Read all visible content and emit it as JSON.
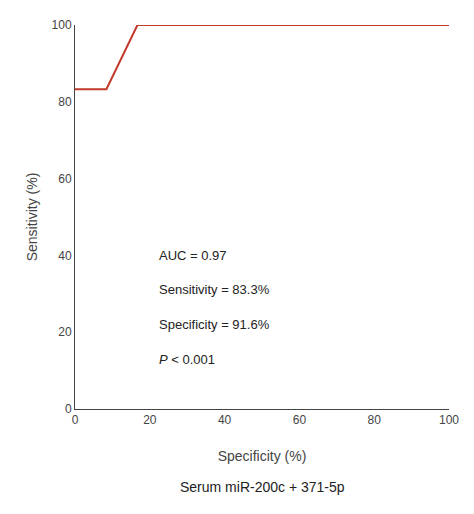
{
  "chart_data": {
    "type": "line",
    "x": [
      0,
      0,
      8.4,
      16.7,
      84,
      100
    ],
    "values": [
      83.3,
      83.3,
      83.3,
      100,
      100,
      100
    ],
    "color": "#c0392b",
    "xlabel": "Specificity (%)",
    "ylabel": "Sensitivity (%)",
    "subtitle": "Serum miR-200c + 371-5p",
    "xlim": [
      0,
      100
    ],
    "ylim": [
      0,
      100
    ],
    "xticks": [
      0,
      20,
      40,
      60,
      80,
      100
    ],
    "yticks": [
      0,
      20,
      40,
      60,
      80,
      100
    ],
    "annotations": [
      "AUC = 0.97",
      "Sensitivity = 83.3%",
      "Specificity = 91.6%",
      "P < 0.001"
    ],
    "grid": false
  }
}
